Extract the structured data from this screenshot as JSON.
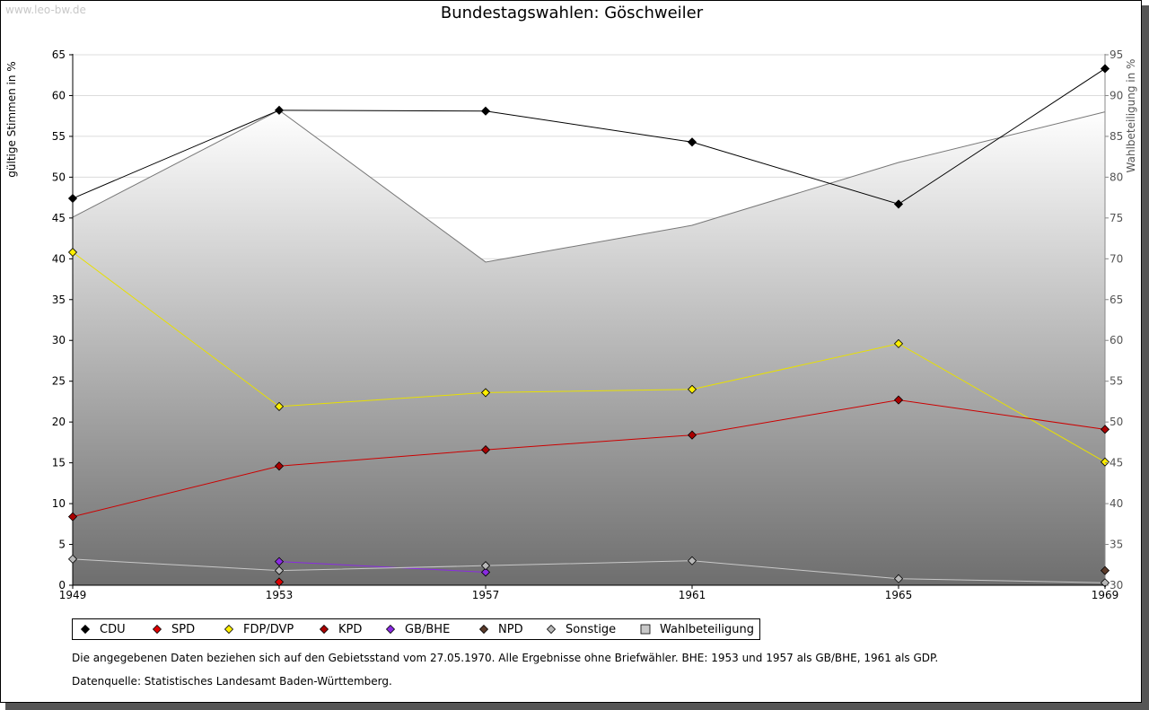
{
  "watermark": "www.leo-bw.de",
  "notes": {
    "line1": "Die angegebenen Daten beziehen sich auf den Gebietsstand vom 27.05.1970. Alle Ergebnisse ohne Briefwähler. BHE: 1953 und 1957 als GB/BHE, 1961 als GDP.",
    "line2": "Datenquelle: Statistisches Landesamt Baden-Württemberg."
  },
  "legend": [
    {
      "label": "CDU",
      "color": "#000000",
      "marker": "diamond"
    },
    {
      "label": "SPD",
      "color": "#dd0000",
      "marker": "diamond"
    },
    {
      "label": "FDP/DVP",
      "color": "#ffee00",
      "marker": "diamond"
    },
    {
      "label": "KPD",
      "color": "#aa0000",
      "marker": "diamond"
    },
    {
      "label": "GB/BHE",
      "color": "#8a2be2",
      "marker": "diamond"
    },
    {
      "label": "NPD",
      "color": "#5a3a2a",
      "marker": "diamond"
    },
    {
      "label": "Sonstige",
      "color": "#b8b8b8",
      "marker": "diamond"
    },
    {
      "label": "Wahlbeteiligung",
      "color": "#c8c8c8",
      "marker": "square"
    }
  ],
  "chart_data": {
    "type": "line",
    "title": "Bundestagswahlen: Göschweiler",
    "ylabel": "gültige Stimmen in %",
    "y2label": "Wahlbeteiligung in %",
    "ylim": [
      0,
      65
    ],
    "y2lim": [
      30,
      95
    ],
    "yticks": [
      0,
      5,
      10,
      15,
      20,
      25,
      30,
      35,
      40,
      45,
      50,
      55,
      60,
      65
    ],
    "y2ticks": [
      30,
      35,
      40,
      45,
      50,
      55,
      60,
      65,
      70,
      75,
      80,
      85,
      90,
      95
    ],
    "categories": [
      "1949",
      "1953",
      "1957",
      "1961",
      "1965",
      "1969"
    ],
    "series": [
      {
        "name": "CDU",
        "color": "#000000",
        "line": "#000000",
        "values": [
          47.4,
          58.2,
          58.1,
          54.3,
          46.7,
          63.3
        ]
      },
      {
        "name": "SPD",
        "color": "#dd0000",
        "line": "#cc0000",
        "values": [
          null,
          null,
          null,
          null,
          null,
          null
        ]
      },
      {
        "name": "FDP/DVP",
        "color": "#ffee00",
        "line": "#e8e000",
        "values": [
          40.8,
          21.9,
          23.6,
          24.0,
          29.6,
          15.1
        ]
      },
      {
        "name": "KPD",
        "color": "#aa0000",
        "line": "#cc0000",
        "values": [
          8.4,
          14.6,
          16.6,
          18.4,
          22.7,
          19.1
        ]
      },
      {
        "name": "GB/BHE",
        "color": "#8a2be2",
        "line": "#8a2be2",
        "values": [
          null,
          2.9,
          1.6,
          null,
          null,
          null
        ]
      },
      {
        "name": "NPD",
        "color": "#5a3a2a",
        "line": "#5a3a2a",
        "values": [
          null,
          null,
          null,
          null,
          null,
          1.8
        ]
      },
      {
        "name": "Sonstige",
        "color": "#b8b8b8",
        "line": "#c8c8c8",
        "values": [
          3.2,
          1.8,
          2.4,
          3.0,
          0.8,
          0.3
        ]
      }
    ],
    "extra_points": [
      {
        "series": "SPD",
        "x": "1953",
        "value": 0.4
      }
    ],
    "turnout": {
      "name": "Wahlbeteiligung",
      "axis": "right",
      "values": [
        75.1,
        88.2,
        69.6,
        74.1,
        81.8,
        88.0
      ]
    },
    "grid": true
  }
}
